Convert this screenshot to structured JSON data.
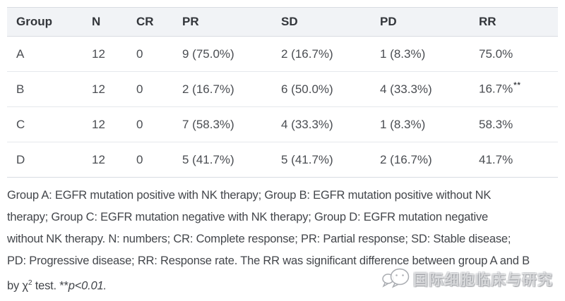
{
  "colors": {
    "header_bg": "#f1f3f6",
    "outer_border": "#d8dce2",
    "row_border": "#e5e8ec",
    "header_text": "#33363b",
    "body_text": "#4a4d52",
    "footnote_text": "#43464b"
  },
  "table": {
    "headers": [
      "Group",
      "N",
      "CR",
      "PR",
      "SD",
      "PD",
      "RR"
    ],
    "rows": [
      {
        "cells": [
          "A",
          "12",
          "0",
          "9 (75.0%)",
          "2 (16.7%)",
          "1 (8.3%)",
          "75.0%"
        ],
        "rr_sup": ""
      },
      {
        "cells": [
          "B",
          "12",
          "0",
          "2 (16.7%)",
          "6 (50.0%)",
          "4 (33.3%)",
          "16.7%"
        ],
        "rr_sup": "**"
      },
      {
        "cells": [
          "C",
          "12",
          "0",
          "7 (58.3%)",
          "4 (33.3%)",
          "1 (8.3%)",
          "58.3%"
        ],
        "rr_sup": ""
      },
      {
        "cells": [
          "D",
          "12",
          "0",
          "5 (41.7%)",
          "5 (41.7%)",
          "2 (16.7%)",
          "41.7%"
        ],
        "rr_sup": ""
      }
    ]
  },
  "footnote": {
    "lines": [
      "Group A: EGFR mutation positive with NK therapy; Group B: EGFR mutation positive without NK",
      "therapy; Group C: EGFR mutation negative with NK therapy; Group D: EGFR mutation negative",
      "without NK therapy. N: numbers; CR: Complete response; PR: Partial response; SD: Stable disease;",
      "PD: Progressive disease; RR: Response rate. The RR was significant difference between group A and B"
    ],
    "last_line": {
      "pre": "by χ",
      "sup": "2",
      "mid": " test. **",
      "italic": "p<0.01."
    }
  },
  "watermark": {
    "icon": "wechat-icon",
    "label": "国际细胞临床与研究"
  }
}
